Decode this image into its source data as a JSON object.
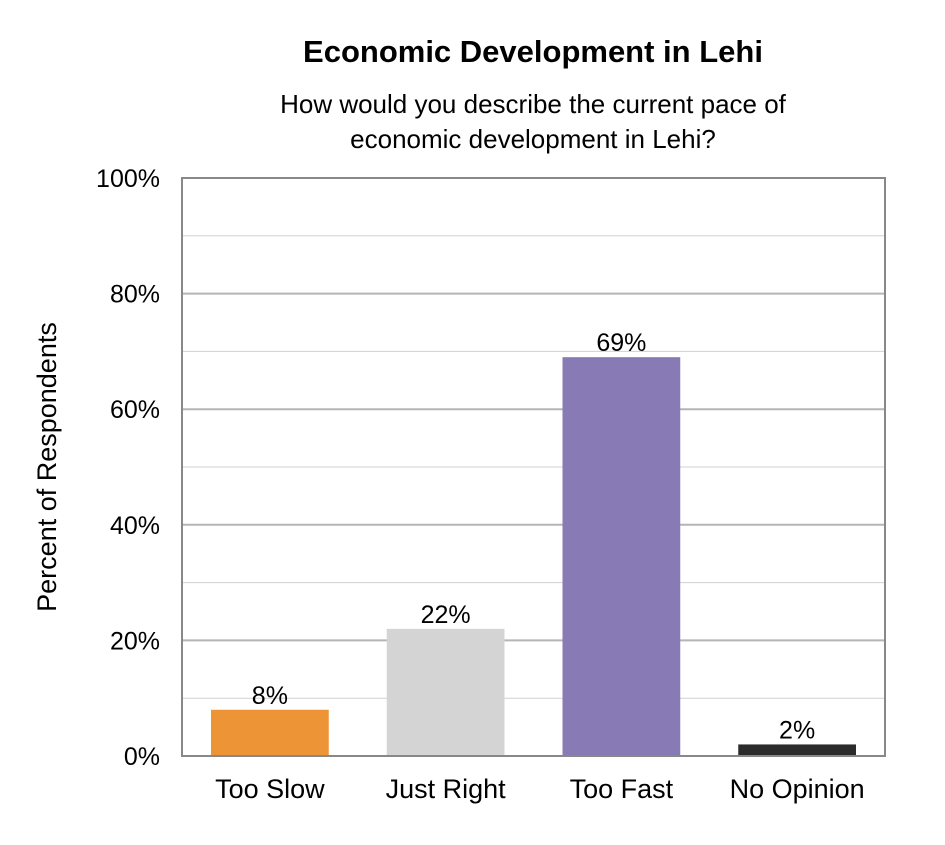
{
  "chart_data": {
    "type": "bar",
    "title": "Economic Development in Lehi",
    "subtitle": [
      "How would you describe the current pace of",
      "economic development in Lehi?"
    ],
    "xlabel": "",
    "ylabel": "Percent of Respondents",
    "categories": [
      "Too Slow",
      "Just Right",
      "Too Fast",
      "No Opinion"
    ],
    "values": [
      8,
      22,
      69,
      2
    ],
    "data_labels": [
      "8%",
      "22%",
      "69%",
      "2%"
    ],
    "colors": [
      "#ed9436",
      "#d4d4d4",
      "#887bb5",
      "#2b2b2b"
    ],
    "ylim": [
      0,
      100
    ],
    "yticks": [
      0,
      20,
      40,
      60,
      80,
      100
    ],
    "ytick_labels": [
      "0%",
      "20%",
      "40%",
      "60%",
      "80%",
      "100%"
    ],
    "minor_gridlines_at": [
      10,
      30,
      50,
      70,
      90
    ],
    "grid": true,
    "legend": "none",
    "gridline_color": "#b5b5b5",
    "axis_color": "#888888"
  }
}
